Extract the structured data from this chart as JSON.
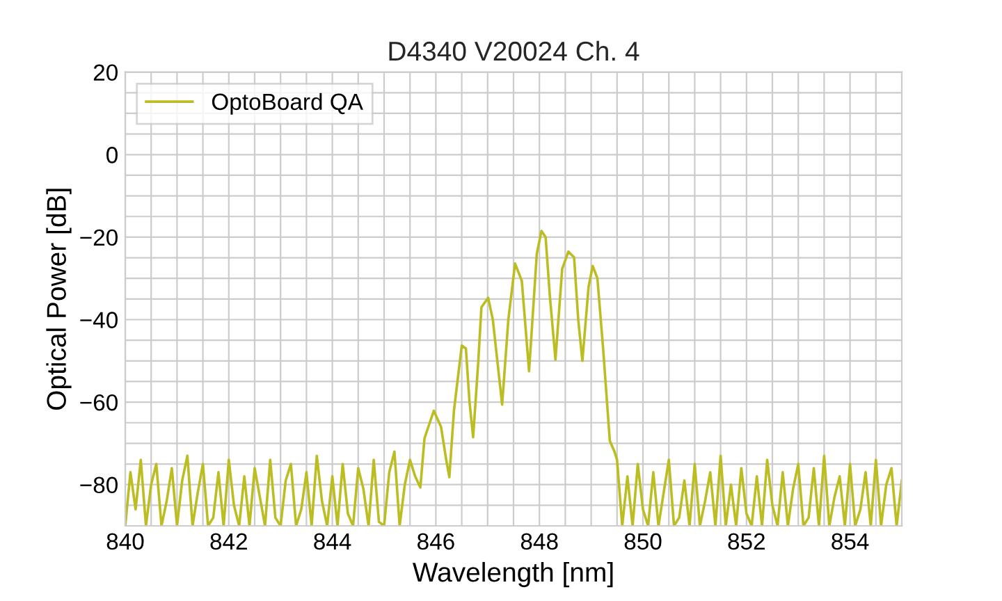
{
  "chart_data": {
    "type": "line",
    "title": "D4340 V20024 Ch. 4",
    "xlabel": "Wavelength [nm]",
    "ylabel": "Optical Power [dB]",
    "xlim": [
      840,
      855
    ],
    "ylim": [
      -90,
      20
    ],
    "xticks": [
      840,
      {
        "value": 840.5,
        "label": null
      },
      {
        "value": 841,
        "label": null
      },
      {
        "value": 841.5,
        "label": null
      },
      {
        "value": 842,
        "label": "842"
      },
      {
        "value": 842.5,
        "label": null
      },
      {
        "value": 843,
        "label": null
      },
      {
        "value": 843.5,
        "label": null
      },
      844,
      {
        "value": 844.5,
        "label": null
      },
      {
        "value": 845,
        "label": null
      },
      {
        "value": 845.5,
        "label": null
      },
      846,
      {
        "value": 846.5,
        "label": null
      },
      {
        "value": 847,
        "label": null
      },
      {
        "value": 847.5,
        "label": null
      },
      848,
      {
        "value": 848.5,
        "label": null
      },
      {
        "value": 849,
        "label": null
      },
      {
        "value": 849.5,
        "label": null
      },
      850,
      {
        "value": 850.5,
        "label": null
      },
      {
        "value": 851,
        "label": null
      },
      {
        "value": 851.5,
        "label": null
      },
      852,
      {
        "value": 852.5,
        "label": null
      },
      {
        "value": 853,
        "label": null
      },
      {
        "value": 853.5,
        "label": null
      },
      854,
      {
        "value": 854.5,
        "label": null
      }
    ],
    "yticks": [
      {
        "value": -90,
        "label": null
      },
      {
        "value": -85,
        "label": null
      },
      {
        "value": -80,
        "label": "−80"
      },
      {
        "value": -75,
        "label": null
      },
      {
        "value": -70,
        "label": null
      },
      {
        "value": -65,
        "label": null
      },
      {
        "value": -60,
        "label": "−60"
      },
      {
        "value": -55,
        "label": null
      },
      {
        "value": -50,
        "label": null
      },
      {
        "value": -45,
        "label": null
      },
      {
        "value": -40,
        "label": "−40"
      },
      {
        "value": -35,
        "label": null
      },
      {
        "value": -30,
        "label": null
      },
      {
        "value": -25,
        "label": null
      },
      {
        "value": -20,
        "label": "−20"
      },
      {
        "value": -15,
        "label": null
      },
      {
        "value": -10,
        "label": null
      },
      {
        "value": -5,
        "label": null
      },
      0,
      {
        "value": 5,
        "label": null
      },
      {
        "value": 10,
        "label": null
      },
      {
        "value": 15,
        "label": null
      },
      20
    ],
    "grid": true,
    "legend": "top left",
    "marker": "none",
    "line_style": "solid",
    "series": [
      {
        "name": "OptoBoard QA",
        "color": "#bcbd22",
        "x": [
          840.0,
          840.1,
          840.2,
          840.3,
          840.4,
          840.5,
          840.6,
          840.7,
          840.8,
          840.9,
          841.0,
          841.1,
          841.2,
          841.3,
          841.4,
          841.5,
          841.6,
          841.7,
          841.8,
          841.9,
          842.0,
          842.1,
          842.2,
          842.3,
          842.4,
          842.5,
          842.6,
          842.7,
          842.8,
          842.9,
          843.0,
          843.1,
          843.2,
          843.3,
          843.4,
          843.5,
          843.6,
          843.7,
          843.8,
          843.9,
          844.0,
          844.1,
          844.2,
          844.3,
          844.4,
          844.5,
          844.6,
          844.7,
          844.8,
          844.9,
          845.0,
          845.1,
          845.2,
          845.3,
          845.4,
          845.5,
          845.6,
          845.7,
          845.78,
          845.96,
          846.1,
          846.2,
          846.26,
          846.35,
          846.5,
          846.58,
          846.65,
          846.72,
          846.82,
          846.88,
          847.01,
          847.1,
          847.28,
          847.4,
          847.53,
          847.66,
          847.8,
          847.95,
          848.04,
          848.12,
          848.2,
          848.31,
          848.44,
          848.56,
          848.67,
          848.75,
          848.83,
          848.95,
          849.03,
          849.12,
          849.23,
          849.36,
          849.45,
          849.5,
          849.6,
          849.7,
          849.8,
          849.9,
          850.0,
          850.1,
          850.2,
          850.3,
          850.4,
          850.5,
          850.6,
          850.7,
          850.8,
          850.9,
          851.0,
          851.1,
          851.2,
          851.3,
          851.4,
          851.5,
          851.6,
          851.7,
          851.8,
          851.9,
          852.0,
          852.1,
          852.2,
          852.3,
          852.4,
          852.5,
          852.6,
          852.7,
          852.8,
          852.9,
          853.0,
          853.1,
          853.2,
          853.3,
          853.4,
          853.5,
          853.6,
          853.7,
          853.8,
          853.9,
          854.0,
          854.1,
          854.2,
          854.3,
          854.4,
          854.5,
          854.6,
          854.7,
          854.8,
          854.9,
          855.0
        ],
        "values": [
          -90,
          -77,
          -86,
          -74,
          -90,
          -80,
          -75,
          -90,
          -84,
          -76,
          -90,
          -79,
          -73,
          -90,
          -82,
          -75,
          -90,
          -88,
          -77,
          -90,
          -74,
          -85,
          -90,
          -78,
          -90,
          -76,
          -83,
          -90,
          -74,
          -88,
          -90,
          -79,
          -75,
          -90,
          -86,
          -77,
          -90,
          -73,
          -84,
          -90,
          -78,
          -90,
          -75,
          -87,
          -90,
          -76,
          -81,
          -90,
          -74,
          -89,
          -90,
          -77,
          -72,
          -90,
          -80,
          -74,
          -78,
          -80.7,
          -68.8,
          -62.1,
          -66,
          -74,
          -78.2,
          -62,
          -46.3,
          -47,
          -60,
          -68.5,
          -50,
          -37,
          -34.7,
          -40,
          -60.6,
          -40,
          -26.4,
          -30.6,
          -52.5,
          -24,
          -18.5,
          -20,
          -34,
          -49.7,
          -27.7,
          -23.5,
          -24.9,
          -40,
          -50,
          -32,
          -27,
          -30,
          -46.9,
          -69.4,
          -72,
          -74,
          -90,
          -78,
          -90,
          -75,
          -86,
          -90,
          -77,
          -90,
          -82,
          -74,
          -90,
          -88,
          -79,
          -90,
          -75,
          -90,
          -84,
          -77,
          -90,
          -73,
          -90,
          -80,
          -90,
          -76,
          -87,
          -90,
          -78,
          -90,
          -74,
          -85,
          -90,
          -77,
          -90,
          -81,
          -75,
          -90,
          -88,
          -76,
          -90,
          -73,
          -90,
          -83,
          -78,
          -90,
          -75,
          -90,
          -86,
          -77,
          -90,
          -74,
          -90,
          -80,
          -76,
          -90,
          -79
        ]
      }
    ]
  }
}
